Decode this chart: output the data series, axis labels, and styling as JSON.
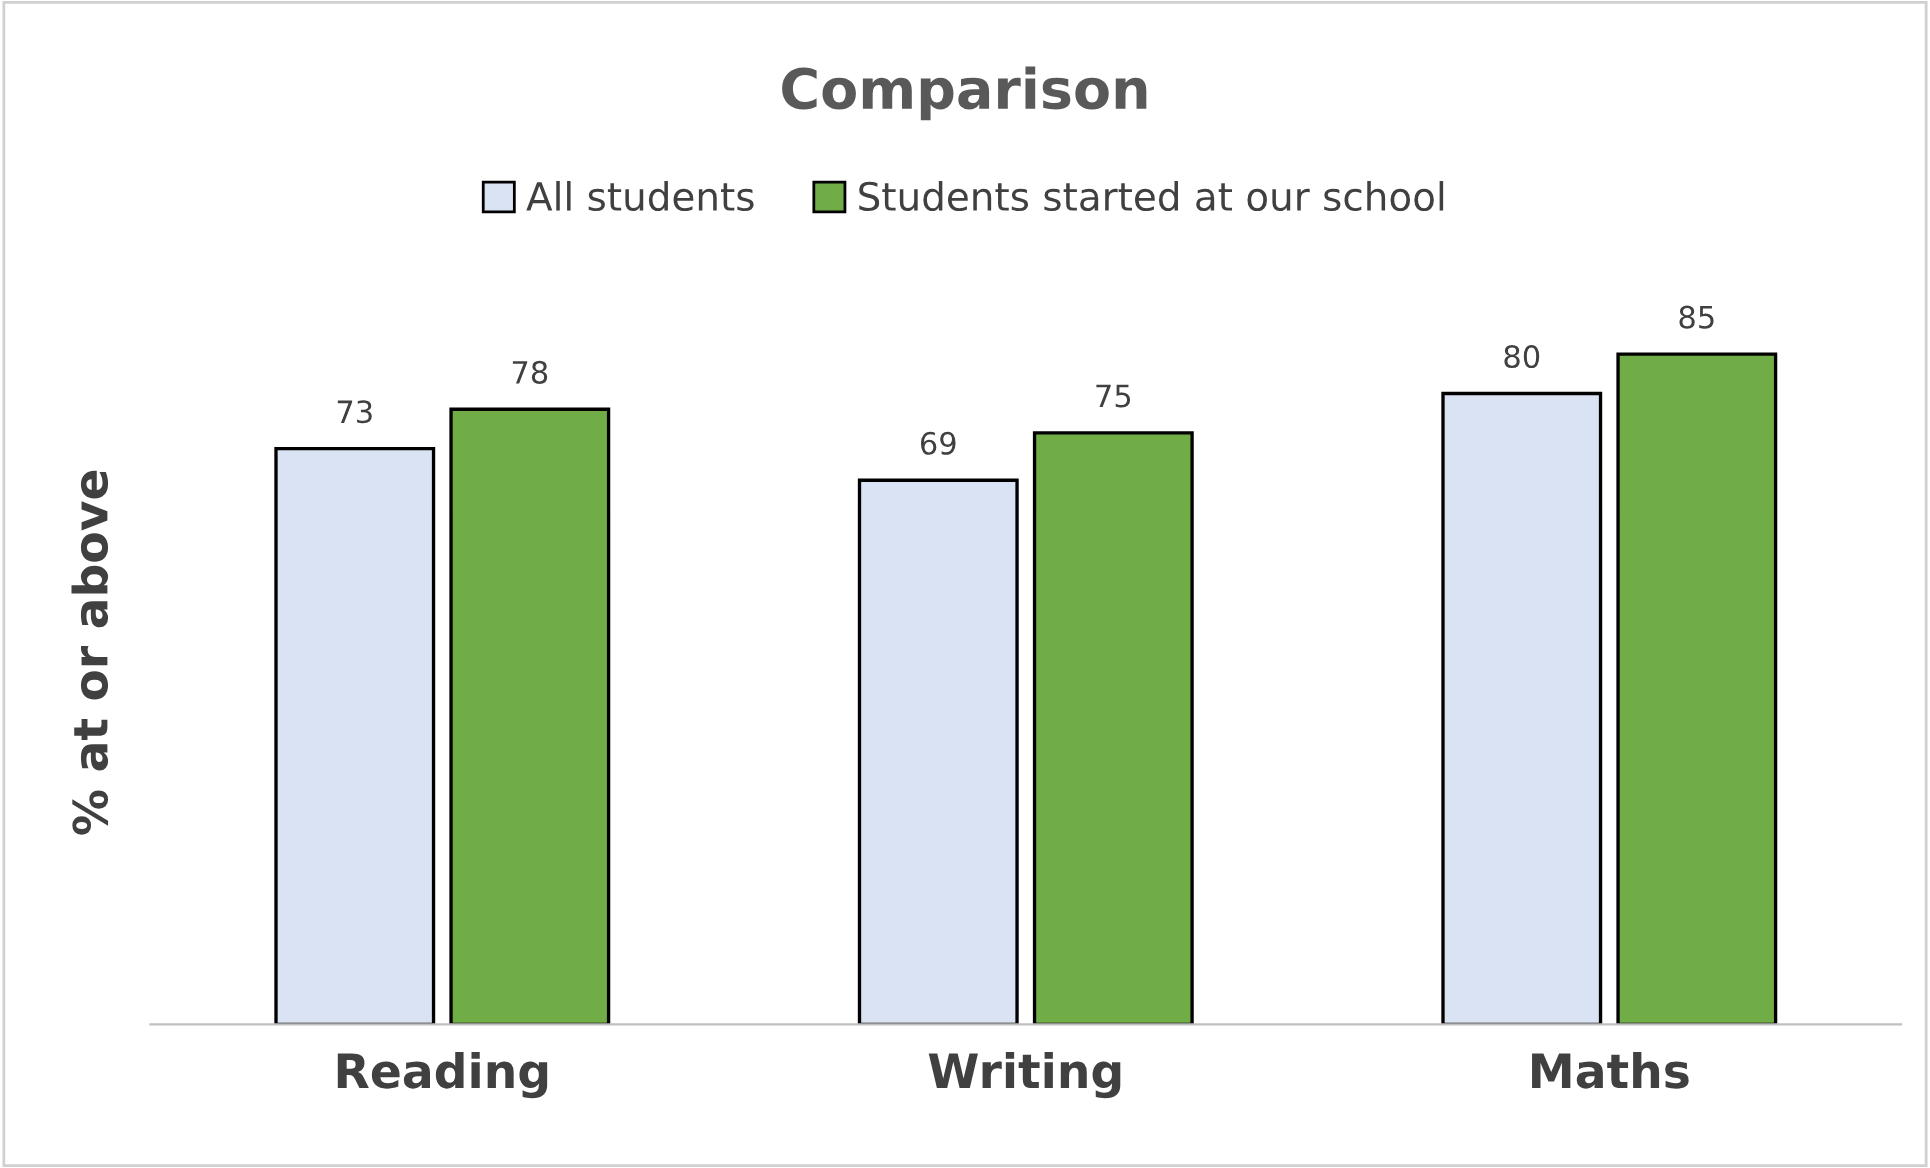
{
  "chart_data": {
    "type": "bar",
    "title": "Comparison",
    "ylabel": "% at or above",
    "categories": [
      "Reading",
      "Writing",
      "Maths"
    ],
    "series": [
      {
        "name": "All students",
        "color": "#dae3f3",
        "values": [
          73,
          69,
          80
        ]
      },
      {
        "name": "Students started at our school",
        "color": "#70ad47",
        "values": [
          78,
          75,
          85
        ]
      }
    ],
    "data_labels": true,
    "legend": "top",
    "grid": false,
    "tick_labels": "x"
  }
}
